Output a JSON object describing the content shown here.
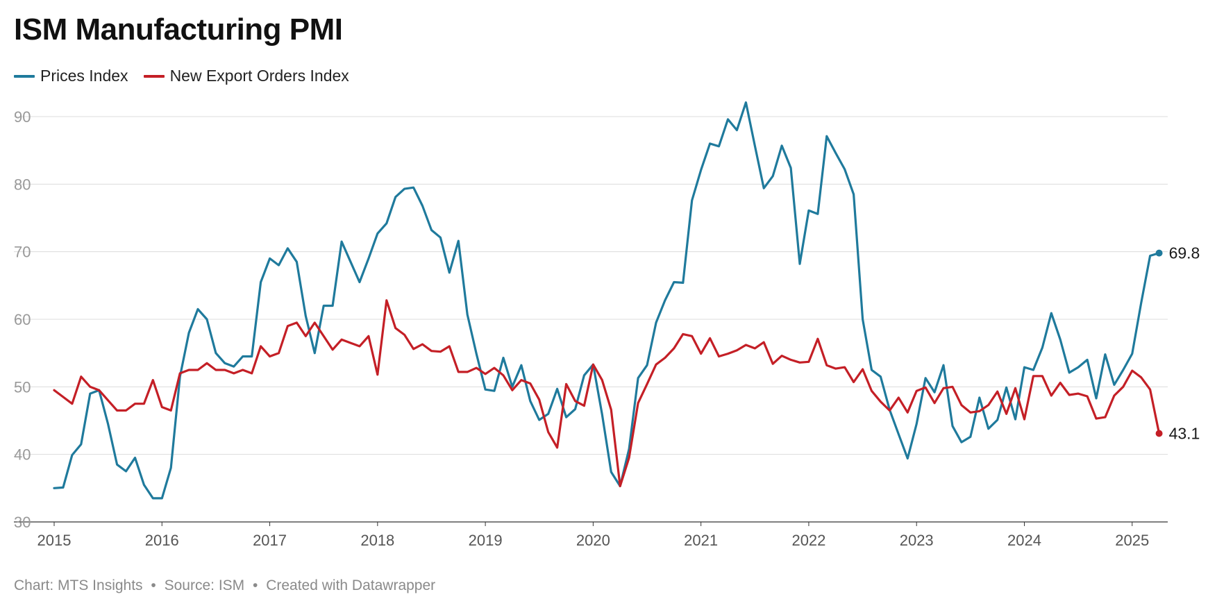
{
  "header": {
    "title": "ISM Manufacturing PMI"
  },
  "legend": [
    {
      "label": "Prices Index",
      "color": "#1f7a9c"
    },
    {
      "label": "New Export Orders Index",
      "color": "#c41f26"
    }
  ],
  "footer": {
    "chart_credit": "Chart: MTS Insights",
    "source": "Source: ISM",
    "tool": "Created with Datawrapper",
    "separator": "•"
  },
  "chart_data": {
    "type": "line",
    "title": "ISM Manufacturing PMI",
    "xlabel": "",
    "ylabel": "",
    "ylim": [
      30,
      90
    ],
    "yticks": [
      30,
      40,
      50,
      60,
      70,
      80,
      90
    ],
    "x_start": "2015-01",
    "x_frequency": "monthly",
    "xlim": [
      2015,
      2025.33
    ],
    "xticks": [
      "2015",
      "2016",
      "2017",
      "2018",
      "2019",
      "2020",
      "2021",
      "2022",
      "2023",
      "2024",
      "2025"
    ],
    "grid": true,
    "legend_position": "top-left",
    "end_labels": [
      {
        "series": "Prices Index",
        "label": "69.8"
      },
      {
        "series": "New Export Orders Index",
        "label": "43.1"
      }
    ],
    "series": [
      {
        "name": "Prices Index",
        "color": "#1f7a9c",
        "values": [
          35.0,
          35.1,
          39.9,
          41.5,
          49.0,
          49.5,
          44.5,
          38.5,
          37.5,
          39.5,
          35.5,
          33.5,
          33.5,
          38.0,
          51.5,
          58.0,
          61.5,
          60.0,
          55.0,
          53.5,
          53.0,
          54.5,
          54.5,
          65.5,
          69.0,
          68.0,
          70.5,
          68.5,
          60.5,
          55.0,
          62.0,
          62.0,
          71.5,
          68.5,
          65.5,
          69.0,
          72.7,
          74.2,
          78.1,
          79.3,
          79.5,
          76.8,
          73.2,
          72.1,
          66.9,
          71.6,
          60.7,
          54.9,
          49.6,
          49.4,
          54.3,
          50.0,
          53.2,
          47.9,
          45.1,
          46.0,
          49.7,
          45.5,
          46.7,
          51.7,
          53.3,
          45.9,
          37.4,
          35.3,
          40.8,
          51.3,
          53.2,
          59.5,
          62.8,
          65.5,
          65.4,
          77.6,
          82.1,
          86.0,
          85.6,
          89.6,
          88.0,
          92.1,
          85.7,
          79.4,
          81.2,
          85.7,
          82.4,
          68.2,
          76.1,
          75.6,
          87.1,
          84.6,
          82.2,
          78.5,
          60.0,
          52.5,
          51.5,
          46.6,
          43.0,
          39.4,
          44.5,
          51.3,
          49.2,
          53.2,
          44.2,
          41.8,
          42.6,
          48.4,
          43.8,
          45.1,
          49.9,
          45.2,
          52.9,
          52.5,
          55.8,
          60.9,
          57.0,
          52.1,
          52.9,
          54.0,
          48.3,
          54.8,
          50.3,
          52.5,
          54.9,
          62.4,
          69.4,
          69.8
        ]
      },
      {
        "name": "New Export Orders Index",
        "color": "#c41f26",
        "values": [
          49.5,
          48.5,
          47.5,
          51.5,
          50.0,
          49.5,
          48.0,
          46.5,
          46.5,
          47.5,
          47.5,
          51.0,
          47.0,
          46.5,
          52.0,
          52.5,
          52.5,
          53.5,
          52.5,
          52.5,
          52.0,
          52.5,
          52.0,
          56.0,
          54.5,
          55.0,
          59.0,
          59.5,
          57.5,
          59.5,
          57.5,
          55.5,
          57.0,
          56.5,
          56.0,
          57.5,
          51.8,
          62.8,
          58.7,
          57.7,
          55.6,
          56.3,
          55.3,
          55.2,
          56.0,
          52.2,
          52.2,
          52.8,
          51.9,
          52.8,
          51.7,
          49.5,
          51.0,
          50.5,
          48.1,
          43.3,
          41.0,
          50.4,
          47.9,
          47.2,
          53.3,
          51.0,
          46.6,
          35.3,
          39.5,
          47.6,
          50.4,
          53.3,
          54.3,
          55.7,
          57.8,
          57.5,
          54.9,
          57.2,
          54.5,
          54.9,
          55.4,
          56.2,
          55.7,
          56.6,
          53.4,
          54.6,
          54.0,
          53.6,
          53.7,
          57.1,
          53.2,
          52.7,
          52.9,
          50.7,
          52.6,
          49.4,
          47.8,
          46.5,
          48.4,
          46.2,
          49.4,
          49.9,
          47.6,
          49.8,
          50.0,
          47.3,
          46.2,
          46.4,
          47.3,
          49.3,
          46.0,
          49.8,
          45.2,
          51.6,
          51.6,
          48.7,
          50.6,
          48.8,
          49.0,
          48.6,
          45.3,
          45.5,
          48.7,
          50.0,
          52.4,
          51.4,
          49.6,
          43.1
        ]
      }
    ]
  }
}
